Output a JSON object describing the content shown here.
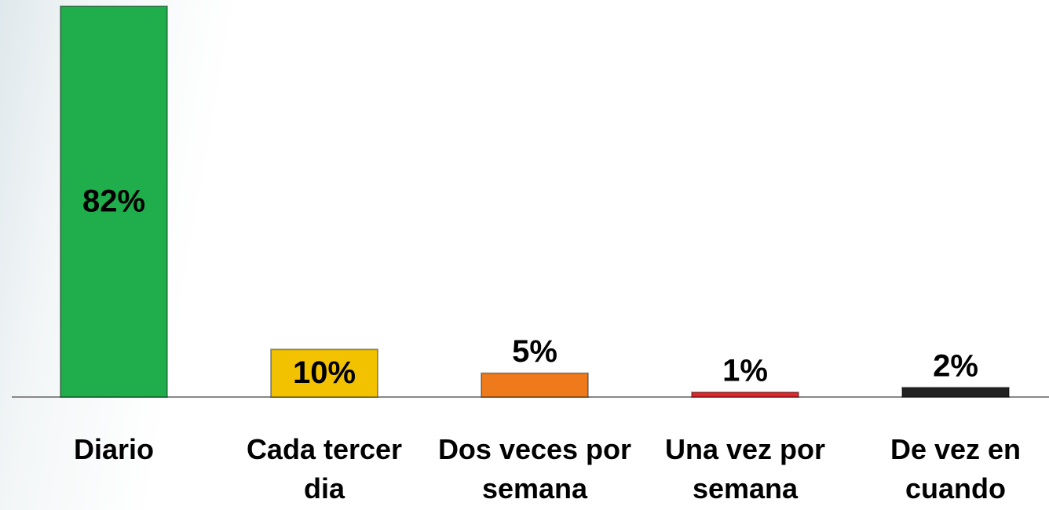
{
  "chart_data": {
    "type": "bar",
    "categories": [
      "Diario",
      "Cada tercer dia",
      "Dos veces por semana",
      "Una vez por semana",
      "De vez en cuando"
    ],
    "values": [
      82,
      10,
      5,
      1,
      2
    ],
    "value_labels": [
      "82%",
      "10%",
      "5%",
      "1%",
      "2%"
    ],
    "colors": [
      "#1fae4b",
      "#f2c200",
      "#ee7a1c",
      "#e0262a",
      "#222222"
    ]
  }
}
